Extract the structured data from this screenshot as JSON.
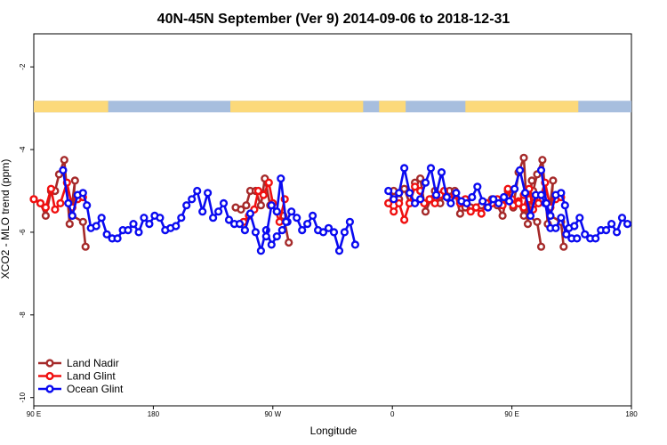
{
  "chart_data": {
    "type": "line",
    "title": "40N-45N September (Ver 9)   2014-09-06 to 2018-12-31",
    "xlabel": "Longitude",
    "ylabel": "XCO2 - MLO trend (ppm)",
    "x_continuous_range": [
      90,
      450
    ],
    "x_ticks": [
      {
        "value": 90,
        "label": "90 E"
      },
      {
        "value": 180,
        "label": "180"
      },
      {
        "value": 270,
        "label": "90 W"
      },
      {
        "value": 360,
        "label": "0"
      },
      {
        "value": 450,
        "label": "90 E"
      },
      {
        "value": 540,
        "label": "180"
      }
    ],
    "xlim": [
      90,
      540
    ],
    "ylim": [
      -10.2,
      -1.2
    ],
    "y_ticks": [
      {
        "value": -2,
        "label": "-2"
      },
      {
        "value": -4,
        "label": "-4"
      },
      {
        "value": -6,
        "label": "-6"
      },
      {
        "value": -8,
        "label": "-8"
      },
      {
        "value": -10,
        "label": "-10"
      }
    ],
    "land_mask_band": {
      "y_range": [
        -3.1,
        -2.82
      ],
      "land_color": "#fcd97a",
      "ocean_color": "#a7bede",
      "land_spans": [
        [
          90,
          146
        ],
        [
          238,
          338
        ],
        [
          350,
          370
        ],
        [
          415,
          500
        ]
      ]
    },
    "legend_position": "bottom-left",
    "series": [
      {
        "name": "Land Nadir",
        "color": "#a52a2a",
        "segments": [
          [
            [
              90,
              -5.2
            ],
            [
              95,
              -5.3
            ],
            [
              99,
              -5.6
            ],
            [
              103,
              -5.0
            ],
            [
              106,
              -5.0
            ],
            [
              109,
              -4.6
            ],
            [
              113,
              -4.25
            ],
            [
              117,
              -5.8
            ],
            [
              121,
              -4.75
            ],
            [
              119,
              -5.6
            ],
            [
              127,
              -5.75
            ],
            [
              129,
              -6.35
            ]
          ],
          [
            [
              242,
              -5.4
            ],
            [
              246,
              -5.45
            ],
            [
              250,
              -5.35
            ],
            [
              253,
              -5.0
            ],
            [
              257,
              -5.0
            ],
            [
              261,
              -5.35
            ],
            [
              264,
              -4.7
            ],
            [
              268,
              -5.35
            ],
            [
              273,
              -5.5
            ],
            [
              278,
              -5.6
            ],
            [
              282,
              -6.25
            ]
          ],
          [
            [
              357,
              -5.3
            ],
            [
              361,
              -5.0
            ],
            [
              365,
              -5.2
            ],
            [
              369,
              -4.95
            ],
            [
              373,
              -5.3
            ],
            [
              377,
              -4.8
            ],
            [
              381,
              -4.7
            ],
            [
              385,
              -5.5
            ],
            [
              389,
              -5.2
            ],
            [
              392,
              -5.0
            ],
            [
              396,
              -5.3
            ],
            [
              399,
              -5.1
            ],
            [
              403,
              -5.0
            ],
            [
              407,
              -5.0
            ],
            [
              411,
              -5.55
            ],
            [
              415,
              -5.4
            ],
            [
              419,
              -5.4
            ],
            [
              423,
              -5.4
            ],
            [
              427,
              -5.35
            ],
            [
              431,
              -5.3
            ],
            [
              435,
              -5.2
            ],
            [
              439,
              -5.35
            ],
            [
              443,
              -5.6
            ],
            [
              447,
              -5.0
            ],
            [
              451,
              -5.4
            ],
            [
              455,
              -4.55
            ],
            [
              459,
              -4.2
            ],
            [
              462,
              -5.8
            ],
            [
              465,
              -4.75
            ],
            [
              462,
              -5.6
            ],
            [
              469,
              -5.75
            ],
            [
              472,
              -6.35
            ]
          ]
        ]
      },
      {
        "name": "Land Glint",
        "color": "#f01010",
        "segments": [
          [
            [
              90,
              -5.2
            ],
            [
              95,
              -5.3
            ],
            [
              99,
              -5.4
            ],
            [
              103,
              -4.95
            ],
            [
              106,
              -5.45
            ],
            [
              110,
              -5.3
            ],
            [
              115,
              -4.8
            ],
            [
              119,
              -5.4
            ],
            [
              123,
              -5.2
            ],
            [
              127,
              -5.15
            ]
          ],
          [
            [
              248,
              -5.75
            ],
            [
              252,
              -5.6
            ],
            [
              256,
              -5.45
            ],
            [
              259,
              -5.0
            ],
            [
              263,
              -5.1
            ],
            [
              267,
              -4.8
            ],
            [
              270,
              -5.3
            ],
            [
              275,
              -5.75
            ],
            [
              279,
              -5.2
            ]
          ],
          [
            [
              357,
              -5.3
            ],
            [
              361,
              -5.5
            ],
            [
              365,
              -5.3
            ],
            [
              369,
              -5.7
            ],
            [
              373,
              -5.3
            ],
            [
              377,
              -4.9
            ],
            [
              381,
              -5.0
            ],
            [
              384,
              -5.3
            ],
            [
              388,
              -5.2
            ],
            [
              392,
              -5.3
            ],
            [
              396,
              -5.1
            ],
            [
              399,
              -5.0
            ],
            [
              403,
              -5.2
            ],
            [
              407,
              -5.1
            ],
            [
              411,
              -5.3
            ],
            [
              415,
              -5.2
            ],
            [
              419,
              -5.5
            ],
            [
              423,
              -5.4
            ],
            [
              427,
              -5.55
            ],
            [
              431,
              -5.3
            ],
            [
              435,
              -5.3
            ],
            [
              439,
              -5.2
            ],
            [
              443,
              -5.35
            ],
            [
              447,
              -4.95
            ],
            [
              451,
              -5.35
            ],
            [
              455,
              -5.25
            ],
            [
              459,
              -5.1
            ],
            [
              463,
              -5.2
            ],
            [
              467,
              -5.15
            ]
          ]
        ]
      },
      {
        "name": "Ocean Glint",
        "color": "#0a0af0",
        "segments": [
          [
            [
              112,
              -4.5
            ],
            [
              116,
              -5.3
            ],
            [
              119,
              -5.6
            ],
            [
              123,
              -5.1
            ],
            [
              127,
              -5.05
            ],
            [
              130,
              -5.35
            ],
            [
              133,
              -5.9
            ],
            [
              137,
              -5.85
            ],
            [
              141,
              -5.65
            ],
            [
              145,
              -6.05
            ],
            [
              149,
              -6.15
            ],
            [
              153,
              -6.15
            ],
            [
              157,
              -5.95
            ],
            [
              161,
              -5.95
            ],
            [
              165,
              -5.8
            ],
            [
              169,
              -6.0
            ],
            [
              173,
              -5.65
            ],
            [
              177,
              -5.8
            ],
            [
              181,
              -5.6
            ],
            [
              185,
              -5.65
            ],
            [
              189,
              -5.95
            ],
            [
              193,
              -5.9
            ],
            [
              197,
              -5.85
            ],
            [
              201,
              -5.65
            ],
            [
              205,
              -5.35
            ],
            [
              209,
              -5.2
            ],
            [
              213,
              -5.0
            ],
            [
              217,
              -5.5
            ],
            [
              221,
              -5.05
            ],
            [
              225,
              -5.65
            ],
            [
              229,
              -5.5
            ],
            [
              233,
              -5.3
            ],
            [
              237,
              -5.7
            ],
            [
              241,
              -5.8
            ],
            [
              245,
              -5.8
            ],
            [
              249,
              -5.95
            ],
            [
              253,
              -5.55
            ],
            [
              257,
              -6.0
            ],
            [
              261,
              -6.45
            ],
            [
              265,
              -5.95
            ],
            [
              269,
              -6.3
            ],
            [
              273,
              -6.1
            ],
            [
              277,
              -5.95
            ],
            [
              281,
              -5.75
            ]
          ],
          [
            [
              265,
              -6.1
            ],
            [
              269,
              -5.35
            ],
            [
              273,
              -5.5
            ],
            [
              276,
              -4.7
            ],
            [
              280,
              -5.75
            ],
            [
              284,
              -5.5
            ],
            [
              288,
              -5.65
            ],
            [
              292,
              -5.95
            ],
            [
              296,
              -5.8
            ],
            [
              300,
              -5.6
            ],
            [
              304,
              -5.95
            ],
            [
              308,
              -6.0
            ],
            [
              312,
              -5.9
            ],
            [
              316,
              -6.0
            ],
            [
              320,
              -6.45
            ],
            [
              324,
              -6.0
            ],
            [
              328,
              -5.75
            ],
            [
              332,
              -6.3
            ]
          ],
          [
            [
              357,
              -5.0
            ],
            [
              361,
              -5.2
            ],
            [
              365,
              -5.05
            ],
            [
              369,
              -4.45
            ],
            [
              373,
              -5.05
            ],
            [
              377,
              -5.3
            ],
            [
              381,
              -5.2
            ],
            [
              385,
              -4.8
            ],
            [
              389,
              -4.45
            ],
            [
              393,
              -5.1
            ],
            [
              397,
              -4.55
            ],
            [
              401,
              -5.15
            ],
            [
              404,
              -5.3
            ],
            [
              408,
              -5.05
            ],
            [
              412,
              -5.25
            ],
            [
              416,
              -5.3
            ],
            [
              420,
              -5.15
            ],
            [
              424,
              -4.9
            ],
            [
              428,
              -5.25
            ],
            [
              432,
              -5.4
            ],
            [
              436,
              -5.2
            ],
            [
              440,
              -5.3
            ],
            [
              444,
              -5.15
            ],
            [
              448,
              -5.25
            ],
            [
              452,
              -4.95
            ],
            [
              456,
              -4.5
            ],
            [
              460,
              -5.05
            ],
            [
              464,
              -5.6
            ],
            [
              468,
              -5.1
            ],
            [
              472,
              -5.1
            ],
            [
              475,
              -5.3
            ],
            [
              479,
              -5.9
            ],
            [
              483,
              -5.9
            ],
            [
              487,
              -5.65
            ],
            [
              491,
              -6.05
            ],
            [
              495,
              -6.15
            ],
            [
              499,
              -6.15
            ]
          ]
        ]
      }
    ]
  }
}
